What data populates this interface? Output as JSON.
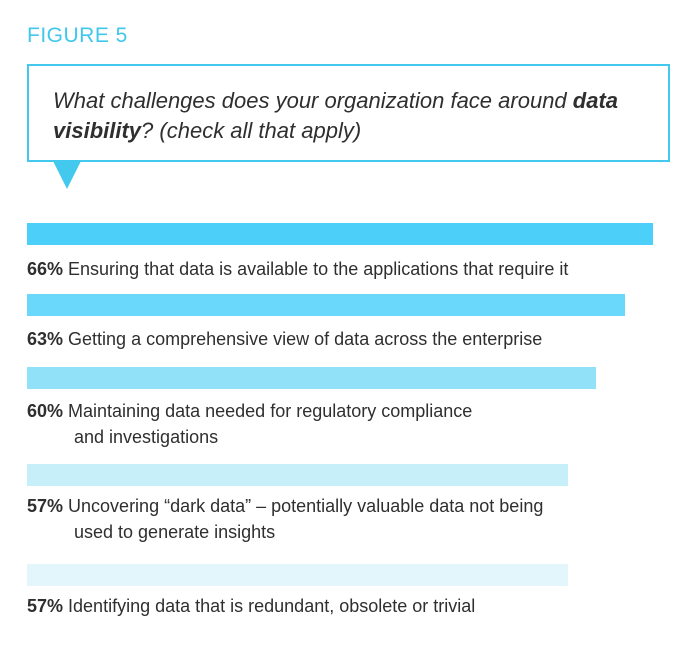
{
  "figure_label": "FIGURE 5",
  "question": {
    "before": "What challenges does your organization face around ",
    "emphasis": "data visibility",
    "after": "?  (check all that apply)"
  },
  "colors": {
    "accent": "#40c8ec",
    "bars": [
      "#4ccff8",
      "#6ad8fa",
      "#91e2f8",
      "#c6effa",
      "#e3f6fb"
    ]
  },
  "chart_data": {
    "type": "bar",
    "orientation": "horizontal",
    "title": "What challenges does your organization face around data visibility?  (check all that apply)",
    "unit": "%",
    "items": [
      {
        "pct": "66%",
        "value": 66,
        "line1": "Ensuring that data is available to the applications that require it",
        "line2": ""
      },
      {
        "pct": "63%",
        "value": 63,
        "line1": "Getting a comprehensive view of data across the enterprise",
        "line2": ""
      },
      {
        "pct": "60%",
        "value": 60,
        "line1": "Maintaining data needed for regulatory compliance",
        "line2": "and investigations"
      },
      {
        "pct": "57%",
        "value": 57,
        "line1": "Uncovering “dark data” – potentially valuable data not being",
        "line2": "used to generate insights"
      },
      {
        "pct": "57%",
        "value": 57,
        "line1": "Identifying data that is redundant, obsolete or trivial",
        "line2": ""
      }
    ]
  }
}
